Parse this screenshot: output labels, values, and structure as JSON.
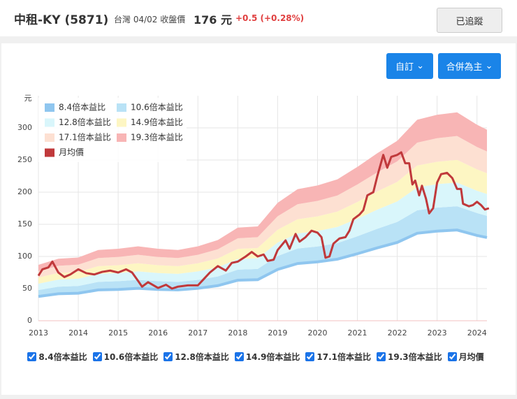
{
  "header": {
    "title": "中租-KY (5871)",
    "market": "台灣 04/02 收盤價",
    "price": "176 元",
    "change": "+0.5 (+0.28%)",
    "follow": "已追蹤"
  },
  "buttons": [
    "自訂",
    "合併為主"
  ],
  "chart_data": {
    "type": "pe-band",
    "y_unit": "元",
    "x": [
      2013.0,
      2013.5,
      2014.0,
      2014.5,
      2015.0,
      2015.5,
      2016.0,
      2016.5,
      2017.0,
      2017.5,
      2018.0,
      2018.5,
      2019.0,
      2019.5,
      2020.0,
      2020.5,
      2021.0,
      2021.5,
      2022.0,
      2022.5,
      2023.0,
      2023.5,
      2024.0,
      2024.25
    ],
    "xlim": [
      2013,
      2024.25
    ],
    "xticks": [
      2013,
      2014,
      2015,
      2016,
      2017,
      2018,
      2019,
      2020,
      2021,
      2022,
      2023,
      2024
    ],
    "ylim": [
      0,
      350
    ],
    "yticks": [
      0,
      50,
      100,
      150,
      200,
      250,
      300
    ],
    "grid": true,
    "series": [
      {
        "name": "8.4倍本益比",
        "color": "#8fc6ef",
        "values": [
          37.8,
          42,
          42.8,
          47.9,
          48.7,
          50.4,
          48.7,
          47.9,
          50.4,
          54.6,
          63,
          63.8,
          79.8,
          89,
          91.6,
          95.8,
          104.2,
          113.4,
          121.8,
          136.1,
          139.4,
          141.1,
          132.7,
          129.4
        ]
      },
      {
        "name": "10.6倍本益比",
        "color": "#b9e2f6",
        "values": [
          47.7,
          53,
          54.1,
          60.4,
          61.5,
          63.6,
          61.5,
          60.4,
          63.6,
          68.9,
          79.5,
          80.6,
          100.7,
          112.4,
          115.5,
          120.8,
          131.4,
          143.1,
          153.7,
          171.7,
          176,
          178.1,
          167.5,
          163.2
        ]
      },
      {
        "name": "12.8倍本益比",
        "color": "#d9f6fb",
        "values": [
          57.6,
          64,
          65.3,
          73,
          74.2,
          76.8,
          74.2,
          73,
          76.8,
          83.2,
          96,
          97.3,
          121.6,
          135.7,
          139.5,
          145.9,
          158.7,
          172.8,
          185.6,
          207.4,
          212.5,
          215,
          202.2,
          197.1
        ]
      },
      {
        "name": "14.9倍本益比",
        "color": "#fdf6c3",
        "values": [
          67.1,
          74.5,
          76,
          84.9,
          86.4,
          89.4,
          86.4,
          84.9,
          89.4,
          96.9,
          111.8,
          113.2,
          141.6,
          157.9,
          162.4,
          169.9,
          184.8,
          201.2,
          216.1,
          241.4,
          247.3,
          250.3,
          235.4,
          229.5
        ]
      },
      {
        "name": "17.1倍本益比",
        "color": "#fde0d2",
        "values": [
          77,
          85.5,
          87.2,
          97.5,
          99.2,
          102.6,
          99.2,
          97.5,
          102.6,
          111.2,
          128.3,
          130,
          162.5,
          181.3,
          186.4,
          194.9,
          212,
          230.9,
          248,
          277,
          283.9,
          287.3,
          270.2,
          263.3
        ]
      },
      {
        "name": "19.3倍本益比",
        "color": "#f8b5b5",
        "values": [
          86.9,
          96.5,
          98.4,
          110,
          111.9,
          115.8,
          111.9,
          110,
          115.8,
          125.5,
          144.8,
          146.7,
          183.4,
          204.6,
          210.4,
          220,
          239.3,
          260.6,
          279.9,
          312.7,
          320.4,
          324.2,
          304.9,
          297.2
        ]
      },
      {
        "name": "月均價",
        "color": "#c0393b",
        "x": [
          2013.0,
          2013.1,
          2013.25,
          2013.35,
          2013.5,
          2013.65,
          2013.8,
          2014.0,
          2014.2,
          2014.4,
          2014.6,
          2014.8,
          2015.0,
          2015.2,
          2015.35,
          2015.5,
          2015.6,
          2015.75,
          2016.0,
          2016.2,
          2016.35,
          2016.5,
          2016.75,
          2017.0,
          2017.15,
          2017.3,
          2017.5,
          2017.7,
          2017.85,
          2018.0,
          2018.2,
          2018.35,
          2018.5,
          2018.65,
          2018.75,
          2018.9,
          2019.0,
          2019.2,
          2019.3,
          2019.45,
          2019.55,
          2019.7,
          2019.85,
          2020.0,
          2020.1,
          2020.2,
          2020.3,
          2020.4,
          2020.55,
          2020.7,
          2020.8,
          2020.9,
          2021.05,
          2021.15,
          2021.25,
          2021.4,
          2021.5,
          2021.65,
          2021.75,
          2021.85,
          2022.0,
          2022.1,
          2022.2,
          2022.3,
          2022.38,
          2022.45,
          2022.55,
          2022.62,
          2022.72,
          2022.8,
          2022.9,
          2023.0,
          2023.1,
          2023.25,
          2023.38,
          2023.5,
          2023.6,
          2023.65,
          2023.8,
          2023.9,
          2024.0,
          2024.1,
          2024.2,
          2024.3
        ],
        "values": [
          70,
          80,
          83,
          92,
          75,
          68,
          72,
          80,
          74,
          72,
          76,
          78,
          75,
          80,
          75,
          62,
          53,
          60,
          51,
          56,
          50,
          53,
          55,
          55,
          65,
          75,
          85,
          78,
          90,
          92,
          100,
          107,
          100,
          103,
          93,
          95,
          110,
          125,
          112,
          135,
          123,
          130,
          140,
          137,
          130,
          98,
          100,
          120,
          128,
          130,
          140,
          158,
          165,
          172,
          195,
          200,
          225,
          258,
          238,
          255,
          258,
          262,
          245,
          245,
          212,
          218,
          195,
          210,
          190,
          167,
          175,
          215,
          228,
          230,
          222,
          205,
          205,
          182,
          178,
          180,
          185,
          180,
          173,
          175
        ]
      }
    ]
  }
}
